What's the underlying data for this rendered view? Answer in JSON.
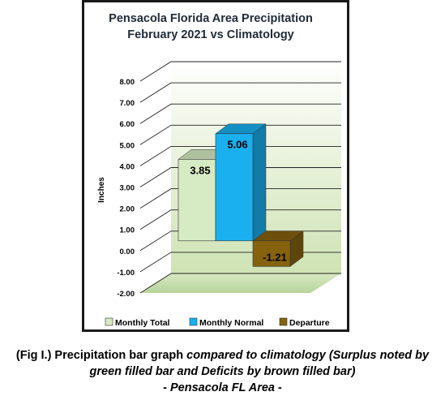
{
  "chart_data": {
    "type": "bar",
    "title_line1": "Pensacola Florida Area Precipitation",
    "title_line2": "February 2021 vs Climatology",
    "ylabel": "Inches",
    "ylim": [
      -2,
      8
    ],
    "yticks": [
      "-2.00",
      "-1.00",
      "0.00",
      "1.00",
      "2.00",
      "3.00",
      "4.00",
      "5.00",
      "6.00",
      "7.00",
      "8.00"
    ],
    "grid": true,
    "legend_position": "bottom",
    "series": [
      {
        "name": "Monthly Total",
        "value": 3.85,
        "label": "3.85",
        "color": "#d6eac4"
      },
      {
        "name": "Monthly Normal",
        "value": 5.06,
        "label": "5.06",
        "color": "#1ab0f0"
      },
      {
        "name": "Departure",
        "value": -1.21,
        "label": "-1.21",
        "color": "#86620f"
      }
    ]
  },
  "caption": {
    "part1": "(Fig I.) Precipitation bar graph ",
    "part2": "compared to climatology (Surplus noted by green filled bar and Deficits by brown filled bar)",
    "part3": "- Pensacola FL Area -"
  }
}
